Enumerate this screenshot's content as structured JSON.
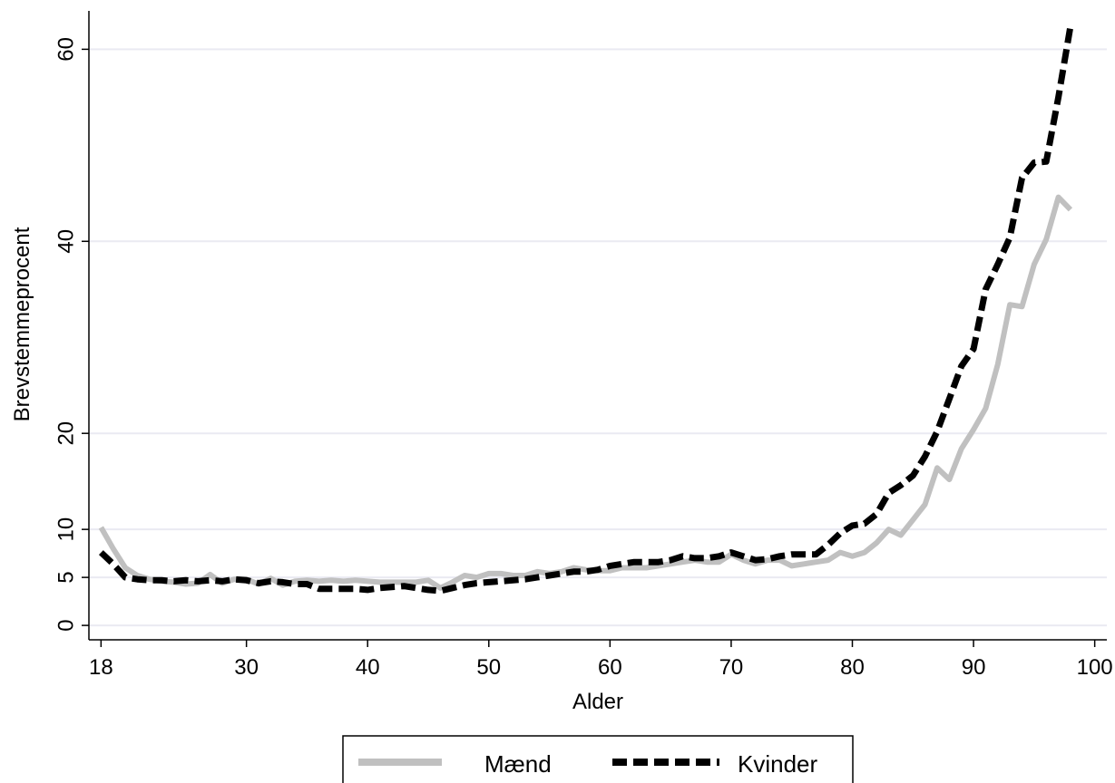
{
  "chart_data": {
    "type": "line",
    "title": "",
    "xlabel": "Alder",
    "ylabel": "Brevstemmeprocent",
    "xticks": [
      "18",
      "30",
      "40",
      "50",
      "60",
      "70",
      "80",
      "90",
      "100"
    ],
    "yticks": [
      "0",
      "5",
      "10",
      "20",
      "40",
      "60"
    ],
    "xlim": [
      17,
      101
    ],
    "ylim": [
      -1.5,
      64
    ],
    "grid": true,
    "legend_position": "bottom",
    "colors": {
      "maend": "#c0c0c0",
      "kvinder": "#000000",
      "grid": "#eaeaf2"
    },
    "series": [
      {
        "name": "Mænd",
        "style": "solid",
        "x": [
          18,
          19,
          20,
          21,
          22,
          23,
          24,
          25,
          26,
          27,
          28,
          29,
          30,
          31,
          32,
          33,
          34,
          35,
          36,
          37,
          38,
          39,
          40,
          41,
          42,
          43,
          44,
          45,
          46,
          47,
          48,
          49,
          50,
          51,
          52,
          53,
          54,
          55,
          56,
          57,
          58,
          59,
          60,
          61,
          62,
          63,
          64,
          65,
          66,
          67,
          68,
          69,
          70,
          71,
          72,
          73,
          74,
          75,
          76,
          77,
          78,
          79,
          80,
          81,
          82,
          83,
          84,
          85,
          86,
          87,
          88,
          89,
          90,
          91,
          92,
          93,
          94,
          95,
          96,
          97,
          98
        ],
        "y": [
          10.2,
          8,
          6,
          5.2,
          4.8,
          4.6,
          4.5,
          4.3,
          4.4,
          5.3,
          4.4,
          4.8,
          4.8,
          4.3,
          4.9,
          4.2,
          4.6,
          4.7,
          4.6,
          4.7,
          4.6,
          4.7,
          4.6,
          4.5,
          4.5,
          4.5,
          4.5,
          4.7,
          3.9,
          4.5,
          5.2,
          5,
          5.4,
          5.4,
          5.2,
          5.2,
          5.6,
          5.4,
          5.6,
          6,
          5.8,
          5.7,
          5.7,
          6,
          6,
          6,
          6.2,
          6.4,
          6.6,
          6.8,
          6.6,
          6.6,
          7.4,
          6.8,
          6.4,
          6.8,
          6.8,
          6.2,
          6.4,
          6.6,
          6.8,
          7.6,
          7.2,
          7.6,
          8.6,
          10,
          9.4,
          11,
          12.6,
          16.4,
          15.2,
          18.4,
          20.4,
          22.6,
          27.2,
          33.4,
          33.2,
          37.6,
          40.2,
          44.6,
          43.3
        ]
      },
      {
        "name": "Kvinder",
        "style": "dashed",
        "x": [
          18,
          19,
          20,
          21,
          22,
          23,
          24,
          25,
          26,
          27,
          28,
          29,
          30,
          31,
          32,
          33,
          34,
          35,
          36,
          37,
          38,
          39,
          40,
          41,
          42,
          43,
          44,
          45,
          46,
          47,
          48,
          49,
          50,
          51,
          52,
          53,
          54,
          55,
          56,
          57,
          58,
          59,
          60,
          61,
          62,
          63,
          64,
          65,
          66,
          67,
          68,
          69,
          70,
          71,
          72,
          73,
          74,
          75,
          76,
          77,
          78,
          79,
          80,
          81,
          82,
          83,
          84,
          85,
          86,
          87,
          88,
          89,
          90,
          91,
          92,
          93,
          94,
          95,
          96,
          97,
          98
        ],
        "y": [
          7.6,
          6.4,
          5,
          4.8,
          4.7,
          4.7,
          4.6,
          4.7,
          4.6,
          4.7,
          4.6,
          4.8,
          4.7,
          4.4,
          4.6,
          4.5,
          4.3,
          4.3,
          3.8,
          3.8,
          3.8,
          3.8,
          3.7,
          3.9,
          4,
          4.1,
          3.9,
          3.7,
          3.6,
          3.9,
          4.2,
          4.4,
          4.5,
          4.6,
          4.7,
          4.8,
          5,
          5.2,
          5.4,
          5.6,
          5.6,
          5.8,
          6.2,
          6.4,
          6.6,
          6.6,
          6.6,
          6.8,
          7.2,
          7,
          7,
          7.2,
          7.6,
          7.2,
          6.8,
          6.9,
          7.2,
          7.4,
          7.4,
          7.4,
          8.4,
          9.6,
          10.4,
          10.6,
          11.6,
          13.8,
          14.6,
          15.6,
          17.6,
          20.2,
          23.6,
          27,
          28.8,
          35,
          37.6,
          40.4,
          46.6,
          48.2,
          48.3,
          55,
          62.4
        ]
      }
    ]
  }
}
